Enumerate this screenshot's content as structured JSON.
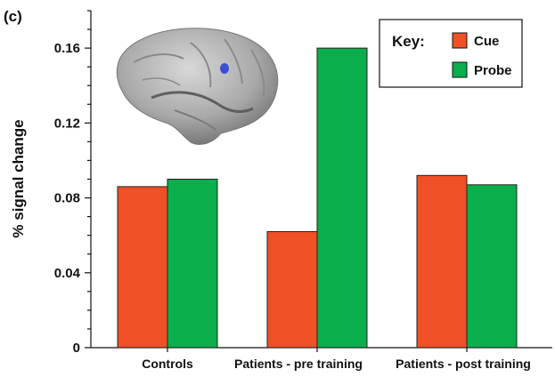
{
  "panel_label": "(c)",
  "chart_data": {
    "type": "bar",
    "categories": [
      "Controls",
      "Patients - pre training",
      "Patients - post training"
    ],
    "series": [
      {
        "name": "Cue",
        "color": "#f05025",
        "values": [
          0.086,
          0.062,
          0.092
        ]
      },
      {
        "name": "Probe",
        "color": "#0aaf4b",
        "values": [
          0.09,
          0.16,
          0.087
        ]
      }
    ],
    "ylabel": "% signal change",
    "ylim": [
      0,
      0.18
    ],
    "yticks": [
      "0",
      "0.04",
      "0.08",
      "0.12",
      "0.16"
    ],
    "legend": {
      "title": "Key:",
      "placement": "top-right"
    },
    "inset_icon": "brain-surface-icon",
    "grid": false
  }
}
